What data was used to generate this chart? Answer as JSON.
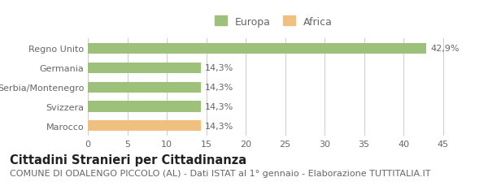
{
  "categories": [
    "Marocco",
    "Svizzera",
    "Serbia/Montenegro",
    "Germania",
    "Regno Unito"
  ],
  "values": [
    14.3,
    14.3,
    14.3,
    14.3,
    42.9
  ],
  "bar_colors": [
    "#f0c080",
    "#9dc07a",
    "#9dc07a",
    "#9dc07a",
    "#9dc07a"
  ],
  "value_labels": [
    "14,3%",
    "14,3%",
    "14,3%",
    "14,3%",
    "42,9%"
  ],
  "xlim": [
    0,
    47
  ],
  "xticks": [
    0,
    5,
    10,
    15,
    20,
    25,
    30,
    35,
    40,
    45
  ],
  "legend_entries": [
    {
      "label": "Europa",
      "color": "#9dc07a"
    },
    {
      "label": "Africa",
      "color": "#f0c080"
    }
  ],
  "title": "Cittadini Stranieri per Cittadinanza",
  "subtitle": "COMUNE DI ODALENGO PICCOLO (AL) - Dati ISTAT al 1° gennaio - Elaborazione TUTTITALIA.IT",
  "background_color": "#ffffff",
  "bar_height": 0.55,
  "title_fontsize": 10.5,
  "subtitle_fontsize": 8,
  "label_fontsize": 8,
  "tick_fontsize": 8,
  "legend_fontsize": 9,
  "grid_color": "#cccccc"
}
